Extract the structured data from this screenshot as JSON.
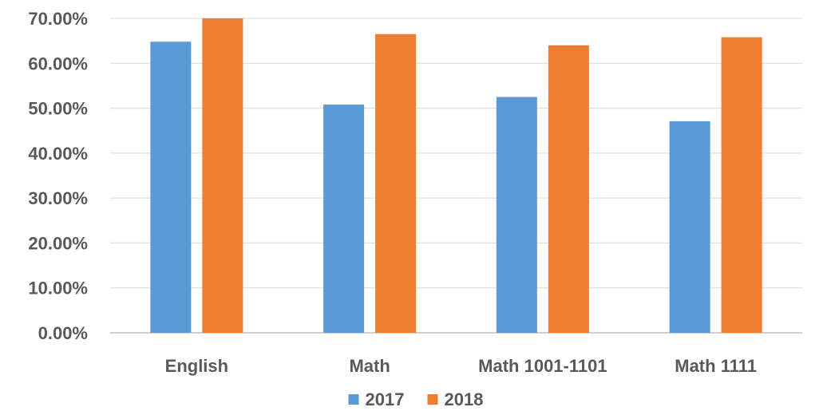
{
  "chart_data": {
    "type": "bar",
    "title": "",
    "xlabel": "",
    "ylabel": "",
    "categories": [
      "English",
      "Math",
      "Math 1001-1101",
      "Math 1111"
    ],
    "series": [
      {
        "name": "2017",
        "values": [
          0.648,
          0.508,
          0.525,
          0.471
        ],
        "color": "#5b9bd5"
      },
      {
        "name": "2018",
        "values": [
          0.7,
          0.665,
          0.64,
          0.658
        ],
        "color": "#ed7d31"
      }
    ],
    "ylim": [
      0,
      0.7
    ],
    "y_ticks": [
      0,
      0.1,
      0.2,
      0.3,
      0.4,
      0.5,
      0.6,
      0.7
    ],
    "y_tick_labels": [
      "0.00%",
      "10.00%",
      "20.00%",
      "30.00%",
      "40.00%",
      "50.00%",
      "60.00%",
      "70.00%"
    ],
    "grid": true,
    "legend": {
      "position": "bottom",
      "entries": [
        "2017",
        "2018"
      ]
    }
  }
}
